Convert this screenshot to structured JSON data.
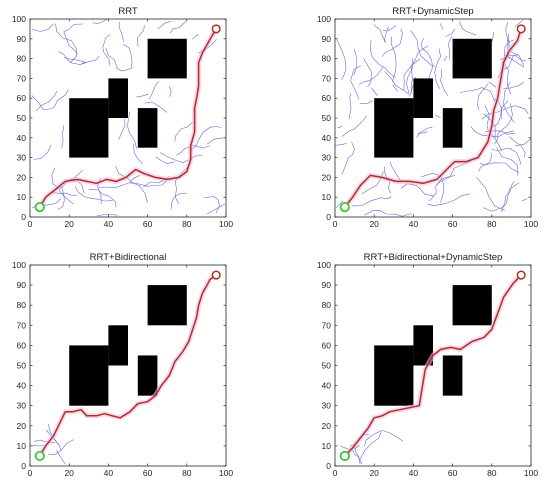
{
  "figure": {
    "panels": [
      {
        "title": "RRT"
      },
      {
        "title": "RRT+DynamicStep"
      },
      {
        "title": "RRT+Bidirectional"
      },
      {
        "title": "RRT+Bidirectional+DynamicStep"
      }
    ]
  },
  "chart_data": [
    {
      "type": "scatter",
      "title": "RRT",
      "xlabel": "",
      "ylabel": "",
      "xlim": [
        0,
        100
      ],
      "ylim": [
        0,
        100
      ],
      "xticks": [
        0,
        20,
        40,
        60,
        80,
        100
      ],
      "yticks": [
        0,
        10,
        20,
        30,
        40,
        50,
        60,
        70,
        80,
        90,
        100
      ],
      "grid": false,
      "obstacles": [
        {
          "x": [
            20,
            40
          ],
          "y": [
            30,
            60
          ]
        },
        {
          "x": [
            40,
            50
          ],
          "y": [
            50,
            70
          ]
        },
        {
          "x": [
            60,
            80
          ],
          "y": [
            70,
            90
          ]
        },
        {
          "x": [
            55,
            65
          ],
          "y": [
            35,
            55
          ]
        }
      ],
      "start": [
        5,
        5
      ],
      "goal": [
        95,
        95
      ],
      "path": [
        [
          5,
          5
        ],
        [
          8,
          10
        ],
        [
          13,
          14
        ],
        [
          18,
          18
        ],
        [
          24,
          19
        ],
        [
          29,
          18
        ],
        [
          34,
          17
        ],
        [
          39,
          19
        ],
        [
          44,
          18
        ],
        [
          49,
          20
        ],
        [
          54,
          24
        ],
        [
          58,
          22
        ],
        [
          64,
          20
        ],
        [
          70,
          19
        ],
        [
          76,
          20
        ],
        [
          80,
          23
        ],
        [
          82,
          29
        ],
        [
          82,
          36
        ],
        [
          84,
          43
        ],
        [
          84,
          49
        ],
        [
          84,
          55
        ],
        [
          85,
          60
        ],
        [
          86,
          66
        ],
        [
          86,
          72
        ],
        [
          86,
          78
        ],
        [
          88,
          83
        ],
        [
          92,
          90
        ],
        [
          95,
          95
        ]
      ],
      "colors": {
        "path": "#b0301c",
        "tree": "#5a5ad6",
        "start": "#3cc43c",
        "goal": "#b0301c",
        "obstacle": "#000000"
      }
    },
    {
      "type": "scatter",
      "title": "RRT+DynamicStep",
      "xlabel": "",
      "ylabel": "",
      "xlim": [
        0,
        100
      ],
      "ylim": [
        0,
        100
      ],
      "xticks": [
        0,
        20,
        40,
        60,
        80,
        100
      ],
      "yticks": [
        0,
        10,
        20,
        30,
        40,
        50,
        60,
        70,
        80,
        90,
        100
      ],
      "grid": false,
      "obstacles": [
        {
          "x": [
            20,
            40
          ],
          "y": [
            30,
            60
          ]
        },
        {
          "x": [
            40,
            50
          ],
          "y": [
            50,
            70
          ]
        },
        {
          "x": [
            60,
            80
          ],
          "y": [
            70,
            90
          ]
        },
        {
          "x": [
            55,
            65
          ],
          "y": [
            35,
            55
          ]
        }
      ],
      "start": [
        5,
        5
      ],
      "goal": [
        95,
        95
      ],
      "path": [
        [
          5,
          5
        ],
        [
          9,
          10
        ],
        [
          13,
          16
        ],
        [
          18,
          21
        ],
        [
          24,
          20
        ],
        [
          31,
          18
        ],
        [
          38,
          18
        ],
        [
          45,
          17
        ],
        [
          52,
          19
        ],
        [
          57,
          24
        ],
        [
          61,
          28
        ],
        [
          67,
          28
        ],
        [
          73,
          30
        ],
        [
          78,
          38
        ],
        [
          80,
          46
        ],
        [
          81,
          54
        ],
        [
          83,
          60
        ],
        [
          84,
          66
        ],
        [
          85,
          72
        ],
        [
          86,
          78
        ],
        [
          89,
          84
        ],
        [
          93,
          89
        ],
        [
          95,
          95
        ]
      ],
      "colors": {
        "path": "#b0301c",
        "tree": "#5a5ad6",
        "start": "#3cc43c",
        "goal": "#b0301c",
        "obstacle": "#000000"
      }
    },
    {
      "type": "scatter",
      "title": "RRT+Bidirectional",
      "xlabel": "",
      "ylabel": "",
      "xlim": [
        0,
        100
      ],
      "ylim": [
        0,
        100
      ],
      "xticks": [
        0,
        20,
        40,
        60,
        80,
        100
      ],
      "yticks": [
        0,
        10,
        20,
        30,
        40,
        50,
        60,
        70,
        80,
        90,
        100
      ],
      "grid": false,
      "obstacles": [
        {
          "x": [
            20,
            40
          ],
          "y": [
            30,
            60
          ]
        },
        {
          "x": [
            40,
            50
          ],
          "y": [
            50,
            70
          ]
        },
        {
          "x": [
            60,
            80
          ],
          "y": [
            70,
            90
          ]
        },
        {
          "x": [
            55,
            65
          ],
          "y": [
            35,
            55
          ]
        }
      ],
      "start": [
        5,
        5
      ],
      "goal": [
        95,
        95
      ],
      "path": [
        [
          5,
          5
        ],
        [
          8,
          10
        ],
        [
          12,
          15
        ],
        [
          15,
          21
        ],
        [
          18,
          27
        ],
        [
          22,
          27
        ],
        [
          26,
          28
        ],
        [
          29,
          25
        ],
        [
          34,
          25
        ],
        [
          38,
          26
        ],
        [
          42,
          25
        ],
        [
          46,
          24
        ],
        [
          51,
          27
        ],
        [
          55,
          31
        ],
        [
          60,
          32
        ],
        [
          64,
          35
        ],
        [
          67,
          40
        ],
        [
          71,
          45
        ],
        [
          74,
          52
        ],
        [
          78,
          57
        ],
        [
          81,
          62
        ],
        [
          83,
          68
        ],
        [
          85,
          74
        ],
        [
          86,
          80
        ],
        [
          88,
          86
        ],
        [
          92,
          93
        ],
        [
          95,
          95
        ]
      ],
      "colors": {
        "path": "#b0301c",
        "tree": "#5a5ad6",
        "start": "#3cc43c",
        "goal": "#b0301c",
        "obstacle": "#000000"
      }
    },
    {
      "type": "scatter",
      "title": "RRT+Bidirectional+DynamicStep",
      "xlabel": "",
      "ylabel": "",
      "xlim": [
        0,
        100
      ],
      "ylim": [
        0,
        100
      ],
      "xticks": [
        0,
        20,
        40,
        60,
        80,
        100
      ],
      "yticks": [
        0,
        10,
        20,
        30,
        40,
        50,
        60,
        70,
        80,
        90,
        100
      ],
      "grid": false,
      "obstacles": [
        {
          "x": [
            20,
            40
          ],
          "y": [
            30,
            60
          ]
        },
        {
          "x": [
            40,
            50
          ],
          "y": [
            50,
            70
          ]
        },
        {
          "x": [
            60,
            80
          ],
          "y": [
            70,
            90
          ]
        },
        {
          "x": [
            55,
            65
          ],
          "y": [
            35,
            55
          ]
        }
      ],
      "start": [
        5,
        5
      ],
      "goal": [
        95,
        95
      ],
      "path": [
        [
          5,
          5
        ],
        [
          9,
          9
        ],
        [
          13,
          14
        ],
        [
          17,
          19
        ],
        [
          20,
          24
        ],
        [
          24,
          25
        ],
        [
          28,
          27
        ],
        [
          33,
          28
        ],
        [
          38,
          29
        ],
        [
          43,
          30
        ],
        [
          44,
          36
        ],
        [
          45,
          42
        ],
        [
          46,
          48
        ],
        [
          50,
          55
        ],
        [
          54,
          58
        ],
        [
          59,
          59
        ],
        [
          64,
          58
        ],
        [
          70,
          62
        ],
        [
          76,
          64
        ],
        [
          80,
          68
        ],
        [
          83,
          76
        ],
        [
          86,
          84
        ],
        [
          91,
          91
        ],
        [
          95,
          95
        ]
      ],
      "colors": {
        "path": "#b0301c",
        "tree": "#5a5ad6",
        "start": "#3cc43c",
        "goal": "#b0301c",
        "obstacle": "#000000"
      }
    }
  ]
}
